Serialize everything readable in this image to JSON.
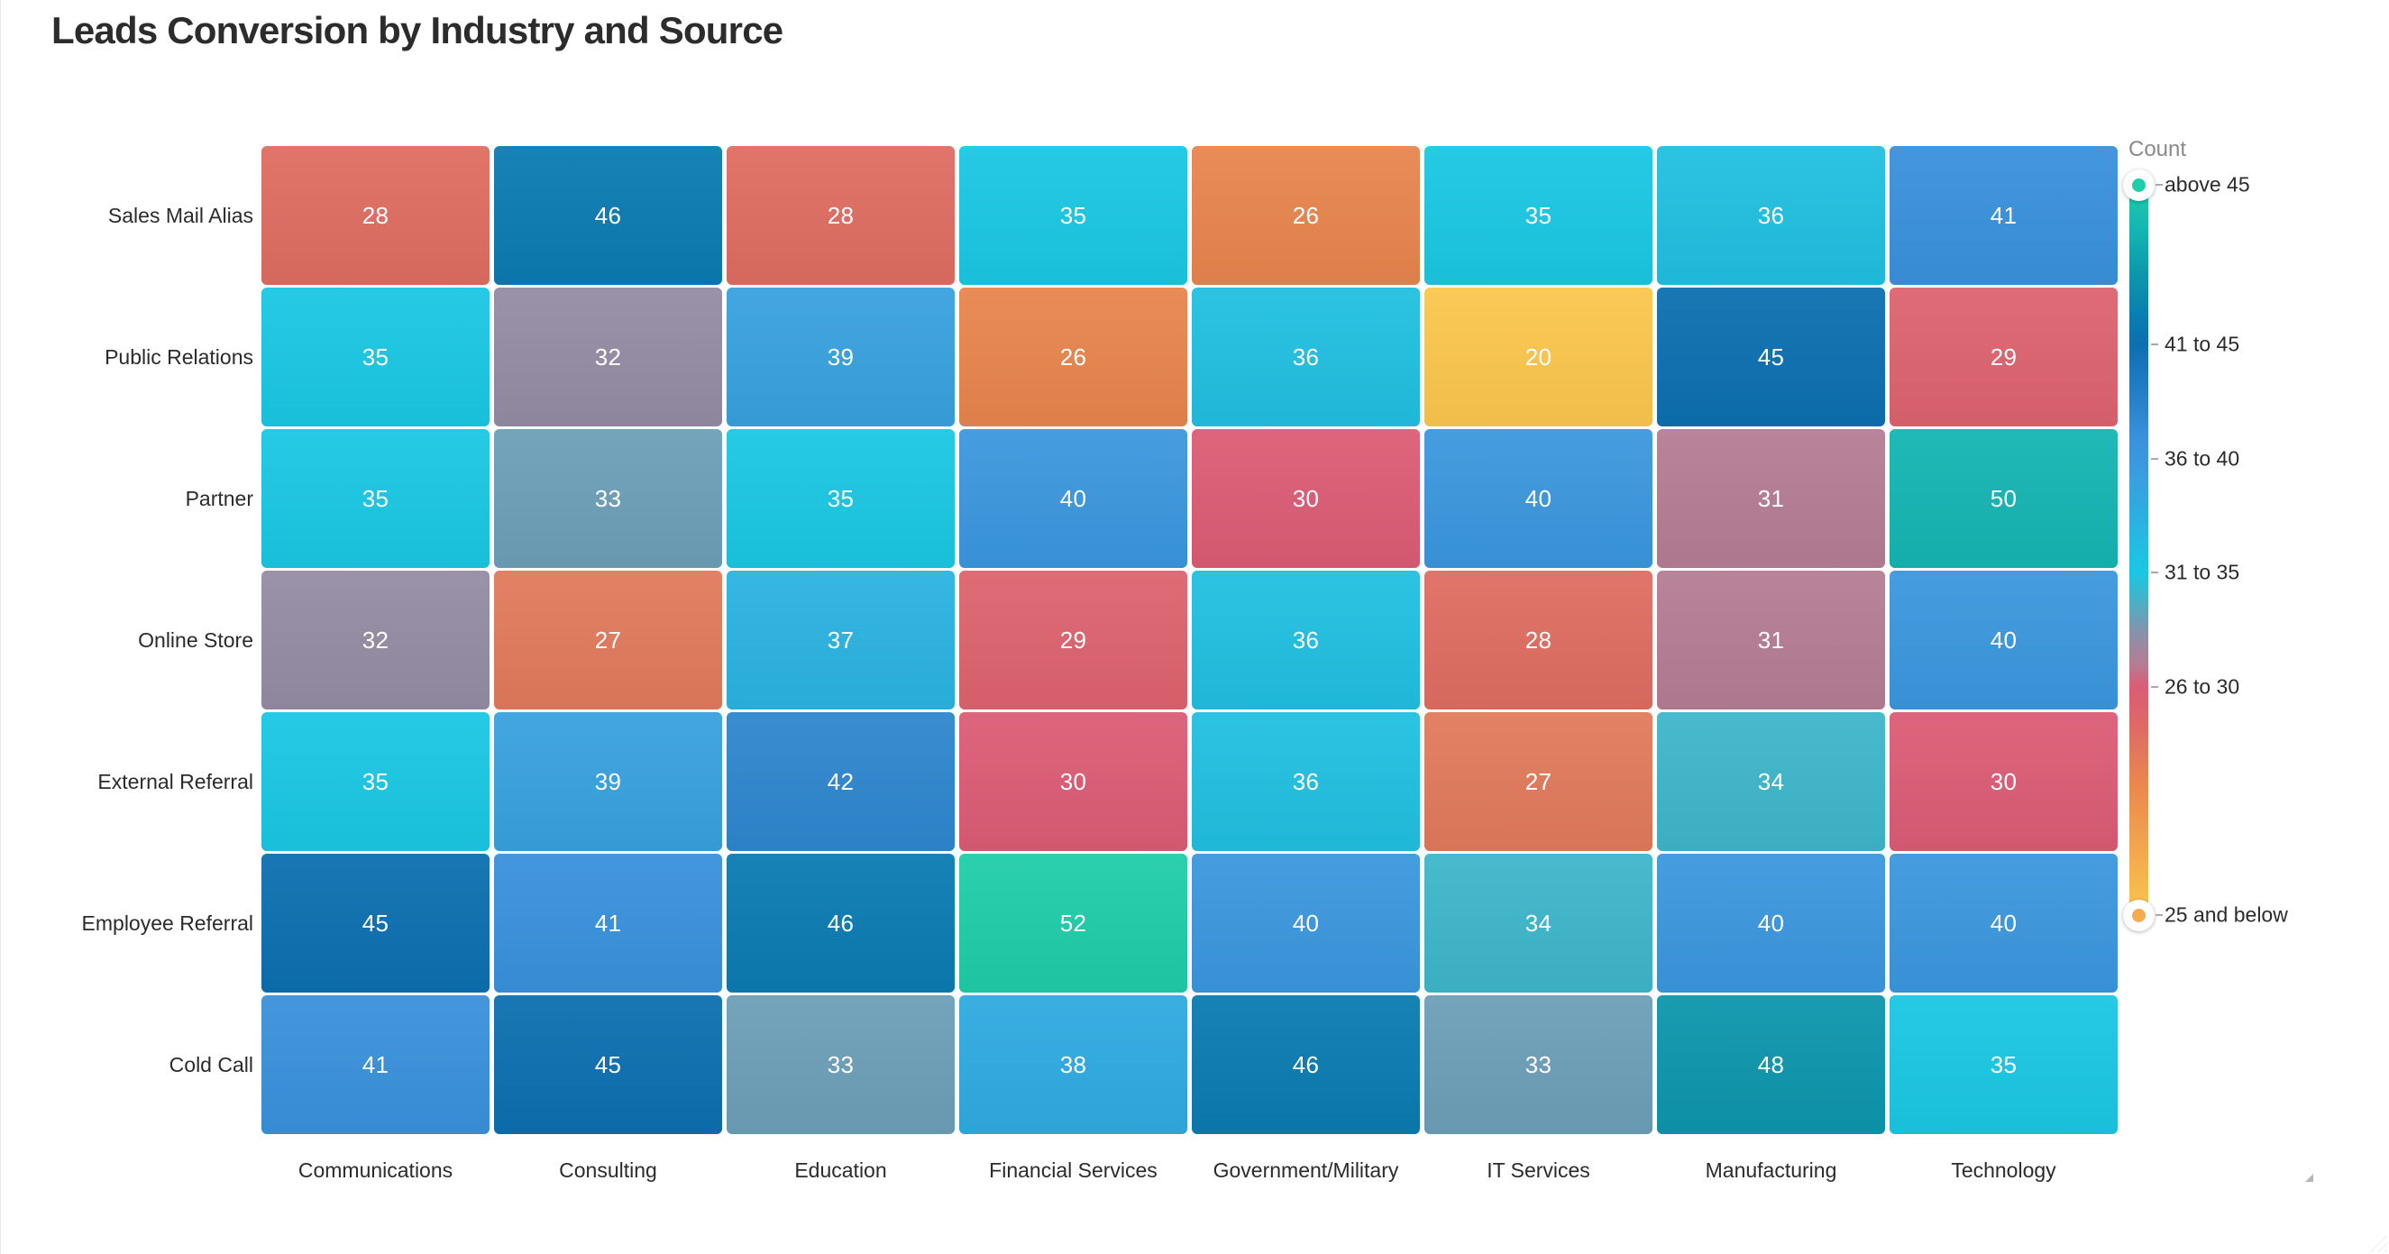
{
  "title": "Leads Conversion by Industry and Source",
  "legend": {
    "title": "Count",
    "top_label": "above 45",
    "bottom_label": "25 and below",
    "tick_labels": [
      {
        "label": "41 to 45",
        "value": 45
      },
      {
        "label": "36 to 40",
        "value": 40
      },
      {
        "label": "31 to 35",
        "value": 35
      },
      {
        "label": "26 to 30",
        "value": 30
      }
    ],
    "handle_colors": {
      "top": "#1ECDA9",
      "bottom": "#F5AC4E"
    }
  },
  "chart_data": {
    "type": "heatmap",
    "title": "Leads Conversion by Industry and Source",
    "x_categories": [
      "Communications",
      "Consulting",
      "Education",
      "Financial Services",
      "Government/Military",
      "IT Services",
      "Manufacturing",
      "Technology"
    ],
    "y_categories": [
      "Sales Mail Alias",
      "Public Relations",
      "Partner",
      "Online Store",
      "External Referral",
      "Employee Referral",
      "Cold Call"
    ],
    "values": [
      [
        28,
        46,
        28,
        35,
        26,
        35,
        36,
        41
      ],
      [
        35,
        32,
        39,
        26,
        36,
        20,
        45,
        29
      ],
      [
        35,
        33,
        35,
        40,
        30,
        40,
        31,
        50
      ],
      [
        32,
        27,
        37,
        29,
        36,
        28,
        31,
        40
      ],
      [
        35,
        39,
        42,
        30,
        36,
        27,
        34,
        30
      ],
      [
        45,
        41,
        46,
        52,
        40,
        34,
        40,
        40
      ],
      [
        41,
        45,
        33,
        38,
        46,
        33,
        48,
        35
      ]
    ],
    "scale": {
      "min": 20,
      "max": 52,
      "legend_bands": [
        "above 45",
        "41 to 45",
        "36 to 40",
        "31 to 35",
        "26 to 30",
        "25 and below"
      ]
    },
    "color_stops": [
      {
        "value": 52,
        "color": "#1FCDA9"
      },
      {
        "value": 50,
        "color": "#14B5B2"
      },
      {
        "value": 48,
        "color": "#0C96AC"
      },
      {
        "value": 46,
        "color": "#0A7BB1"
      },
      {
        "value": 45,
        "color": "#0C6FB0"
      },
      {
        "value": 42,
        "color": "#2E86CE"
      },
      {
        "value": 41,
        "color": "#3991DB"
      },
      {
        "value": 40,
        "color": "#3B97DE"
      },
      {
        "value": 39,
        "color": "#38A1DE"
      },
      {
        "value": 38,
        "color": "#2FAAE0"
      },
      {
        "value": 37,
        "color": "#2BB3E1"
      },
      {
        "value": 36,
        "color": "#21BFE1"
      },
      {
        "value": 35,
        "color": "#1AC7E3"
      },
      {
        "value": 34,
        "color": "#3EB6CB"
      },
      {
        "value": 33,
        "color": "#6C9FB8"
      },
      {
        "value": 32,
        "color": "#948CA3"
      },
      {
        "value": 31,
        "color": "#B57D94"
      },
      {
        "value": 30,
        "color": "#DB5C75"
      },
      {
        "value": 29,
        "color": "#DD636F"
      },
      {
        "value": 28,
        "color": "#DF6D62"
      },
      {
        "value": 27,
        "color": "#E17A5C"
      },
      {
        "value": 26,
        "color": "#E8854E"
      },
      {
        "value": 20,
        "color": "#FBC64D"
      }
    ],
    "cell_text_color": "#FFFFFF",
    "layout": {
      "grid_on": false,
      "legend_position": "right"
    }
  }
}
